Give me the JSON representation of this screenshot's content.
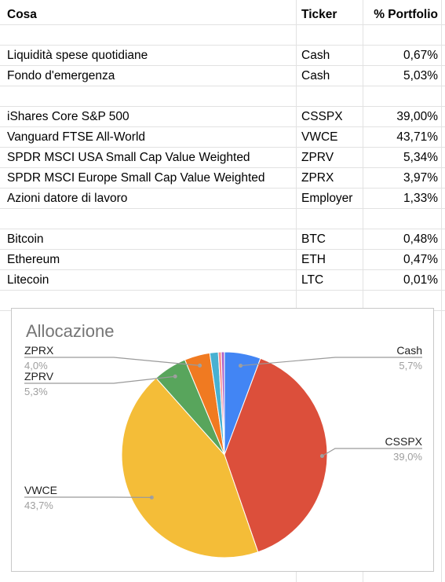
{
  "table": {
    "headers": {
      "cosa": "Cosa",
      "ticker": "Ticker",
      "pct": "% Portfolio"
    },
    "rows": [
      null,
      {
        "cosa": "Liquidità spese quotidiane",
        "ticker": "Cash",
        "pct": "0,67%"
      },
      {
        "cosa": "Fondo d'emergenza",
        "ticker": "Cash",
        "pct": "5,03%"
      },
      null,
      {
        "cosa": "iShares Core S&P 500",
        "ticker": "CSSPX",
        "pct": "39,00%"
      },
      {
        "cosa": "Vanguard FTSE All-World",
        "ticker": "VWCE",
        "pct": "43,71%"
      },
      {
        "cosa": "SPDR MSCI USA Small Cap Value Weighted",
        "ticker": "ZPRV",
        "pct": "5,34%"
      },
      {
        "cosa": "SPDR MSCI Europe Small Cap Value Weighted",
        "ticker": "ZPRX",
        "pct": "3,97%"
      },
      {
        "cosa": "Azioni datore di lavoro",
        "ticker": "Employer",
        "pct": "1,33%"
      },
      null,
      {
        "cosa": "Bitcoin",
        "ticker": "BTC",
        "pct": "0,48%"
      },
      {
        "cosa": "Ethereum",
        "ticker": "ETH",
        "pct": "0,47%"
      },
      {
        "cosa": "Litecoin",
        "ticker": "LTC",
        "pct": "0,01%"
      }
    ]
  },
  "chart_data": {
    "type": "pie",
    "title": "Allocazione",
    "slices": [
      {
        "label": "Cash",
        "value": 5.7,
        "color": "#4285f4"
      },
      {
        "label": "CSSPX",
        "value": 39.0,
        "color": "#dc4f3b"
      },
      {
        "label": "VWCE",
        "value": 43.7,
        "color": "#f4bd38"
      },
      {
        "label": "ZPRV",
        "value": 5.3,
        "color": "#58a55c"
      },
      {
        "label": "ZPRX",
        "value": 4.0,
        "color": "#f07a21"
      },
      {
        "label": "Employer",
        "value": 1.33,
        "color": "#48b1d1"
      },
      {
        "label": "BTC",
        "value": 0.48,
        "color": "#f98f8f"
      },
      {
        "label": "ETH",
        "value": 0.47,
        "color": "#aa5ec8"
      },
      {
        "label": "LTC",
        "value": 0.01,
        "color": "#9e9e9e"
      }
    ],
    "labels": [
      {
        "name": "Cash",
        "pct": "5,7%",
        "side": "right"
      },
      {
        "name": "CSSPX",
        "pct": "39,0%",
        "side": "right"
      },
      {
        "name": "VWCE",
        "pct": "43,7%",
        "side": "left"
      },
      {
        "name": "ZPRV",
        "pct": "5,3%",
        "side": "left"
      },
      {
        "name": "ZPRX",
        "pct": "4,0%",
        "side": "left"
      }
    ]
  }
}
